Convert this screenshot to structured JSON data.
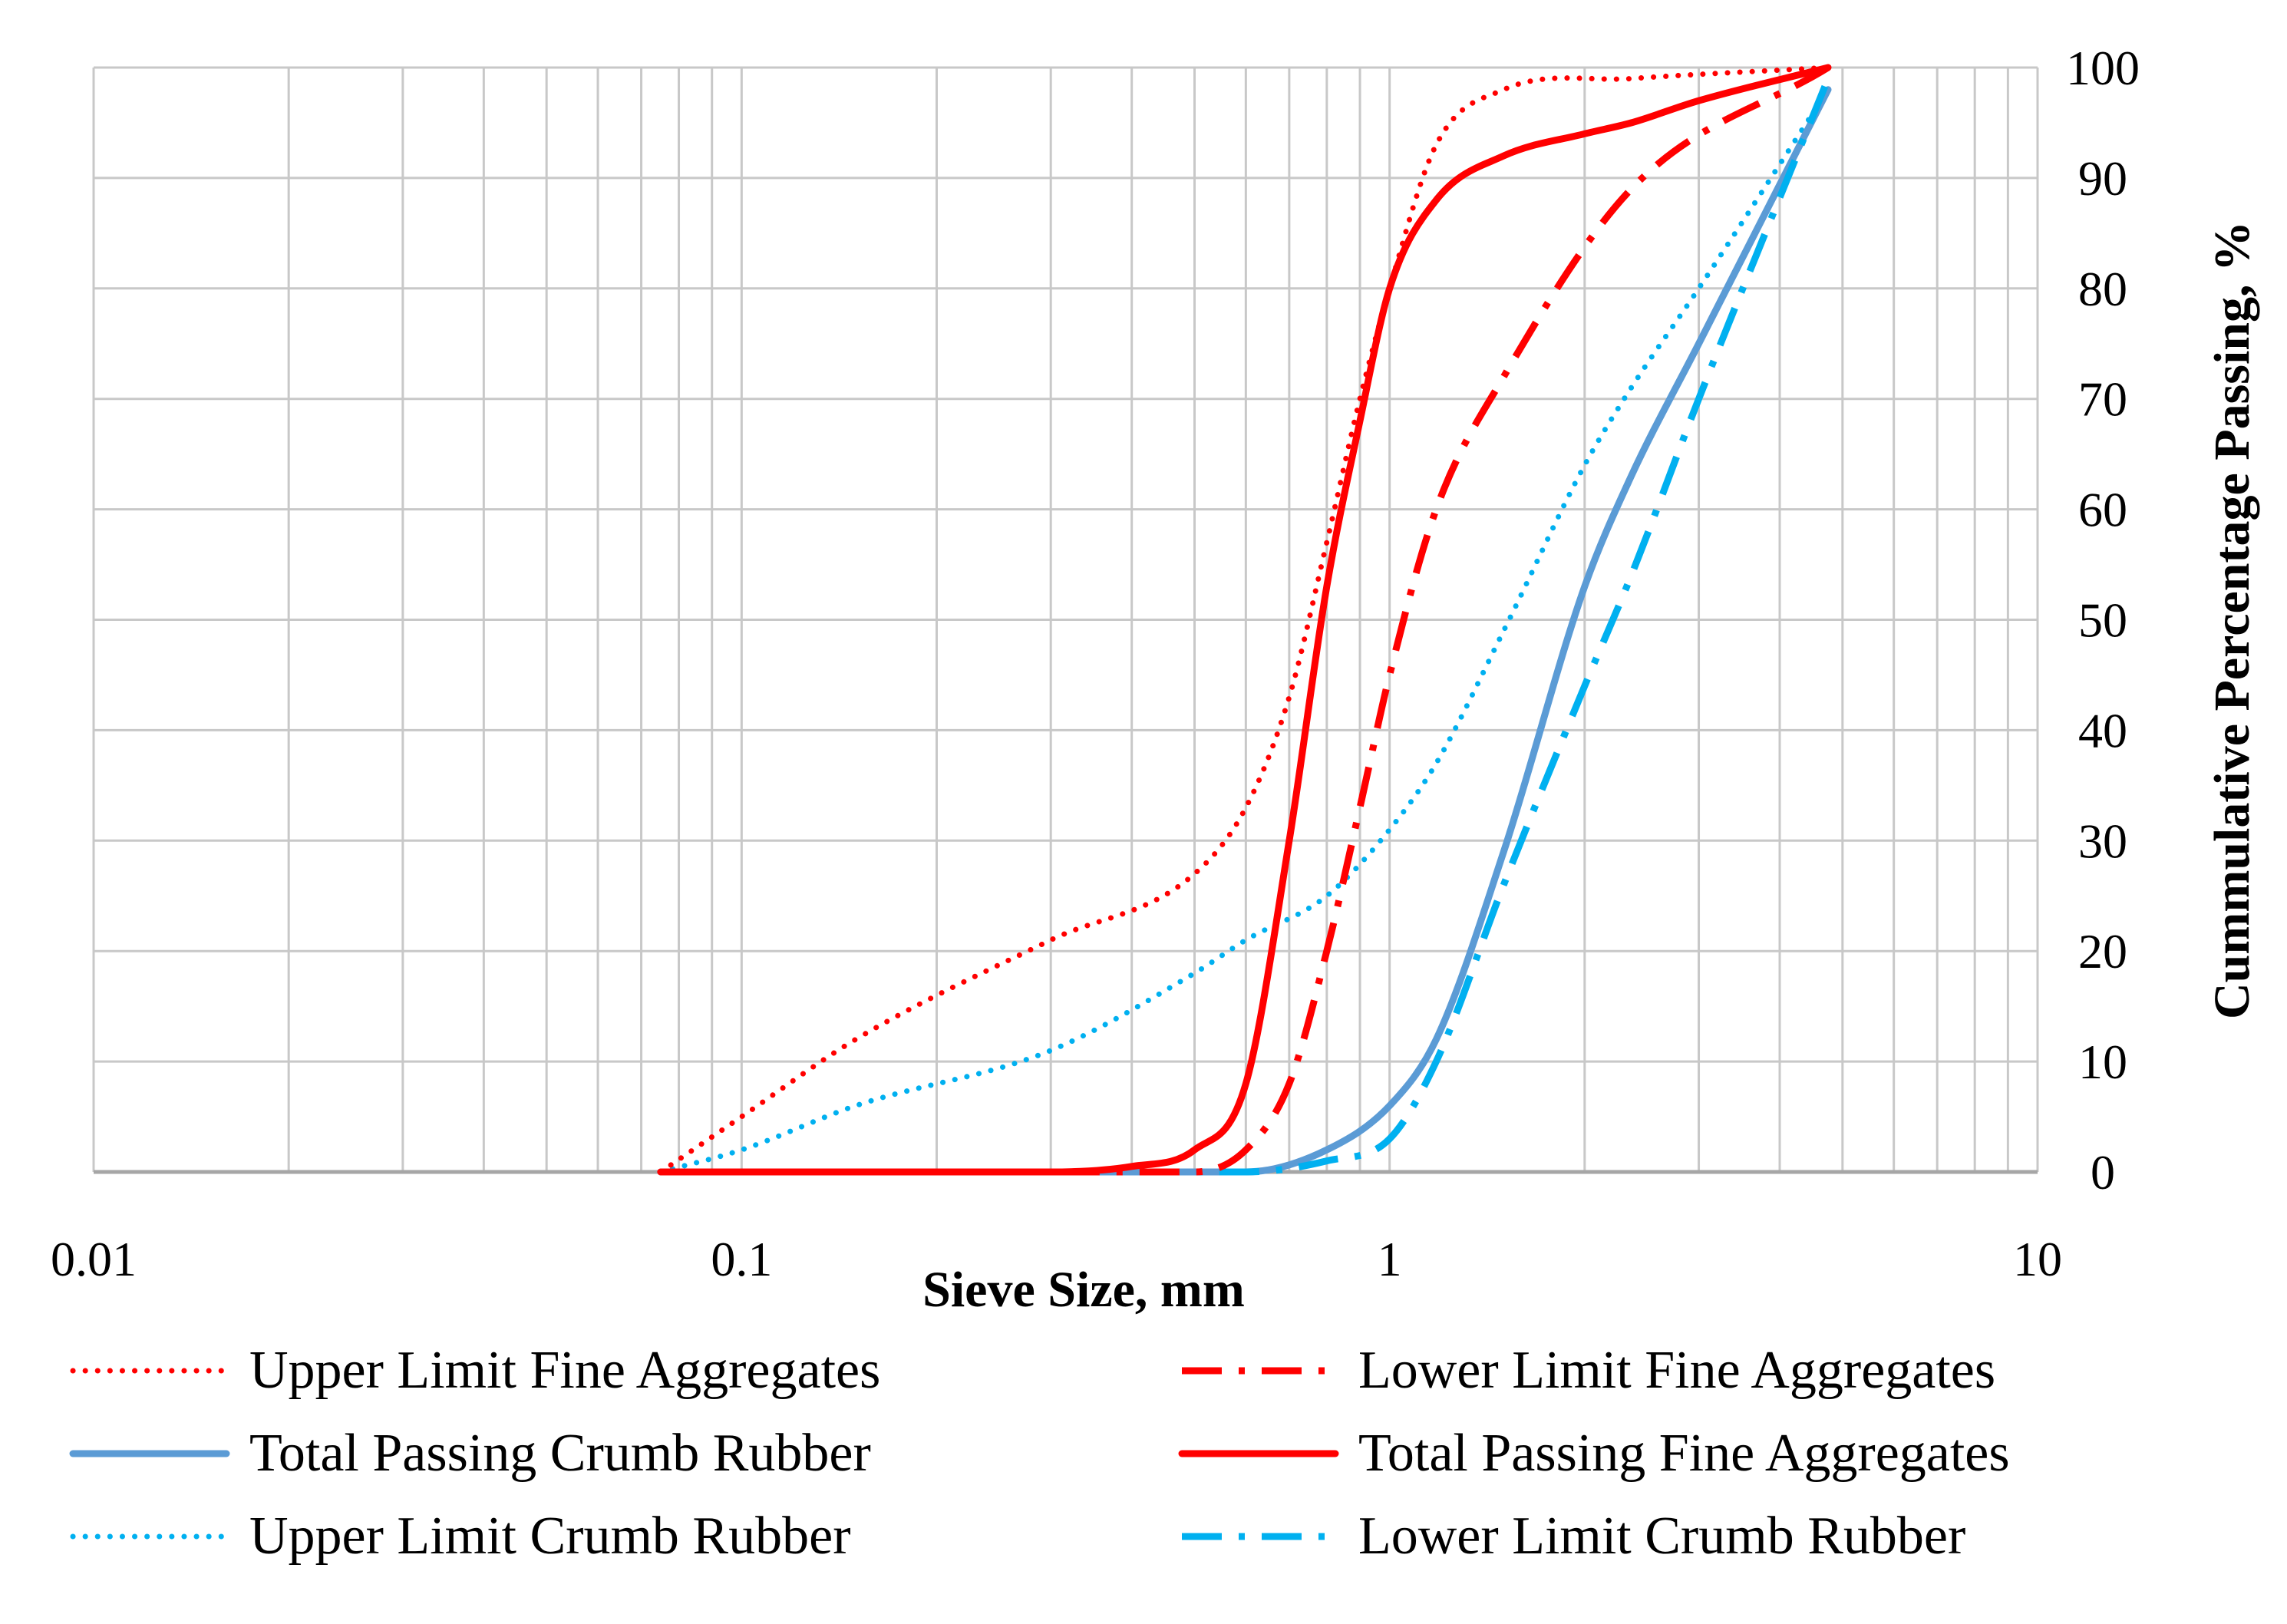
{
  "chart_data": {
    "type": "line",
    "title": "",
    "xlabel": "Sieve Size, mm",
    "ylabel": "Cummulative Percentage Passing, %",
    "x_scale": "log",
    "xlim": [
      0.01,
      10
    ],
    "ylim": [
      0,
      100
    ],
    "x_ticks": [
      "0.01",
      "0.1",
      "1",
      "10"
    ],
    "y_ticks": [
      "0",
      "10",
      "20",
      "30",
      "40",
      "50",
      "60",
      "70",
      "80",
      "90",
      "100"
    ],
    "grid": true,
    "legend_position": "bottom",
    "series": [
      {
        "name": "Upper Limit Fine Aggregates",
        "color": "#ff0000",
        "style": "dotted",
        "x": [
          0.075,
          0.1,
          0.15,
          0.3,
          0.5,
          0.6,
          0.7,
          0.8,
          0.9,
          1.0,
          1.18,
          1.5,
          2.36,
          4.75
        ],
        "y": [
          0,
          5,
          12,
          21,
          27,
          33,
          43,
          57,
          70,
          80,
          93,
          98,
          99,
          100
        ]
      },
      {
        "name": "Lower Limit Fine Aggregates",
        "color": "#ff0000",
        "style": "dashdot",
        "x": [
          0.075,
          0.3,
          0.5,
          0.6,
          0.7,
          0.8,
          0.9,
          1.0,
          1.18,
          1.5,
          2.36,
          4.75
        ],
        "y": [
          0,
          0,
          0,
          2,
          8,
          20,
          33,
          45,
          60,
          72,
          89,
          100
        ]
      },
      {
        "name": "Total Passing Crumb Rubber",
        "color": "#5b9bd5",
        "style": "solid",
        "x": [
          0.075,
          0.6,
          0.8,
          1.0,
          1.18,
          1.5,
          2.0,
          2.36,
          3.0,
          4.75
        ],
        "y": [
          0,
          0,
          2,
          6,
          12,
          29,
          53,
          63,
          75,
          98
        ]
      },
      {
        "name": "Total Passing Fine Aggregates",
        "color": "#ff0000",
        "style": "solid",
        "x": [
          0.075,
          0.3,
          0.4,
          0.5,
          0.6,
          0.7,
          0.8,
          0.9,
          1.0,
          1.18,
          1.5,
          2.0,
          2.36,
          3.0,
          4.75
        ],
        "y": [
          0,
          0,
          0.5,
          2,
          8,
          30,
          53,
          68,
          80,
          88,
          92,
          94,
          95,
          97,
          100
        ]
      },
      {
        "name": "Upper Limit Crumb Rubber",
        "color": "#00b0f0",
        "style": "dotted",
        "x": [
          0.075,
          0.1,
          0.15,
          0.3,
          0.5,
          0.6,
          0.8,
          1.0,
          1.18,
          1.5,
          2.0,
          2.36,
          3.0,
          4.75
        ],
        "y": [
          0,
          2,
          6,
          11,
          18,
          21,
          25,
          31,
          37,
          49,
          64,
          71,
          80,
          98
        ]
      },
      {
        "name": "Lower Limit Crumb Rubber",
        "color": "#00b0f0",
        "style": "dashdot",
        "x": [
          0.075,
          0.3,
          0.6,
          0.8,
          1.0,
          1.18,
          1.5,
          2.0,
          2.36,
          3.0,
          4.75
        ],
        "y": [
          0,
          0,
          0,
          1,
          3,
          10,
          26,
          44,
          54,
          70,
          99
        ]
      }
    ]
  }
}
